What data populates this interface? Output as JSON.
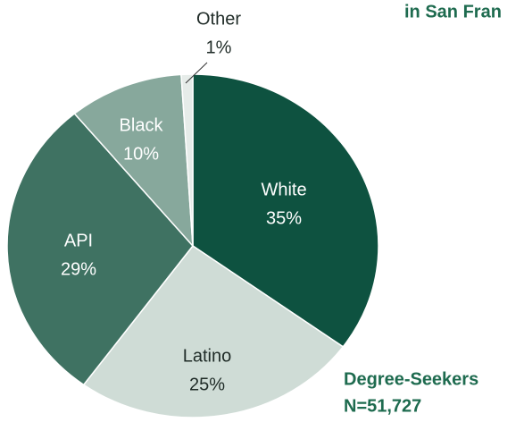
{
  "chart_data": {
    "type": "pie",
    "title": "in San Fran",
    "categories": [
      "White",
      "Latino",
      "API",
      "Black",
      "Other"
    ],
    "values": [
      35,
      25,
      29,
      10,
      1
    ],
    "value_labels": [
      "35%",
      "25%",
      "29%",
      "10%",
      "1%"
    ],
    "colors": [
      "#0e5240",
      "#cfdcd6",
      "#3f7262",
      "#87a89c",
      "#e6ece9"
    ],
    "label_colors": [
      "#ffffff",
      "#1f2b27",
      "#ffffff",
      "#ffffff",
      "#1f2b27"
    ],
    "annotations": [
      "Degree-Seekers",
      "N=51,727"
    ]
  }
}
